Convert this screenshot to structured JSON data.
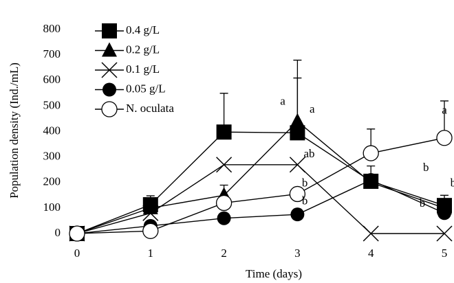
{
  "chart_data": {
    "type": "line",
    "x_label": "Time (days)",
    "y_label": "Population density (Ind./mL)",
    "x": [
      0,
      1,
      2,
      3,
      4,
      5
    ],
    "xlim": [
      0,
      5
    ],
    "xticks": [
      0,
      1,
      2,
      3,
      4,
      5
    ],
    "ylim": [
      0,
      800
    ],
    "yticks": [
      0,
      100,
      200,
      300,
      400,
      500,
      600,
      700,
      800
    ],
    "legend": "upper left",
    "series": [
      {
        "name": "0.4 g/L",
        "marker": "square",
        "color": "#000000",
        "values": [
          0,
          113,
          398,
          395,
          205,
          110
        ],
        "errors": [
          null,
          35,
          152,
          215,
          60,
          40
        ]
      },
      {
        "name": "0.2 g/L",
        "marker": "triangle",
        "color": "#000000",
        "values": [
          0,
          100,
          150,
          440,
          200,
          100
        ],
        "errors": [
          null,
          null,
          40,
          240,
          null,
          null
        ]
      },
      {
        "name": "0.1 g/L",
        "marker": "x",
        "color": "#000000",
        "values": [
          0,
          80,
          270,
          270,
          0,
          0
        ],
        "errors": [
          null,
          null,
          null,
          null,
          null,
          null
        ]
      },
      {
        "name": "0.05 g/L",
        "marker": "circle",
        "color": "#000000",
        "values": [
          0,
          30,
          60,
          75,
          210,
          80
        ],
        "errors": [
          null,
          null,
          null,
          null,
          null,
          null
        ]
      },
      {
        "name": "N. oculata",
        "marker": "open-circle",
        "color": "#000000",
        "values": [
          0,
          10,
          120,
          155,
          315,
          375
        ],
        "errors": [
          null,
          null,
          null,
          null,
          95,
          145
        ]
      }
    ],
    "annotations": [
      {
        "text": "a",
        "x": 2.8,
        "y": 515
      },
      {
        "text": "a",
        "x": 3.2,
        "y": 485
      },
      {
        "text": "ab",
        "x": 3.16,
        "y": 310
      },
      {
        "text": "b",
        "x": 3.1,
        "y": 195
      },
      {
        "text": "b",
        "x": 3.1,
        "y": 125
      },
      {
        "text": "a",
        "x": 5.0,
        "y": 480
      },
      {
        "text": "b",
        "x": 4.75,
        "y": 255
      },
      {
        "text": "b",
        "x": 4.7,
        "y": 115
      },
      {
        "text": "b",
        "x": 5.12,
        "y": 195
      }
    ]
  }
}
